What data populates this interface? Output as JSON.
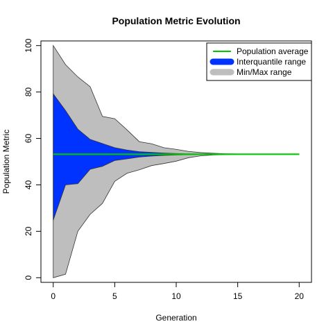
{
  "chart_data": {
    "type": "area",
    "title": "Population Metric Evolution",
    "xlabel": "Generation",
    "ylabel": "Population Metric",
    "xlim": [
      -1,
      21
    ],
    "ylim": [
      -2,
      102
    ],
    "xticks": [
      0,
      5,
      10,
      15,
      20
    ],
    "yticks": [
      0,
      20,
      40,
      60,
      80,
      100
    ],
    "grid": false,
    "legend_position": "top-right",
    "x": [
      0,
      1,
      2,
      3,
      4,
      5,
      6,
      7,
      8,
      9,
      10,
      11,
      12,
      13,
      14,
      15,
      16,
      17,
      18,
      19,
      20
    ],
    "series": [
      {
        "name": "Population average",
        "kind": "line",
        "color": "#00c800",
        "values": [
          53.2,
          53.2,
          53.2,
          53.2,
          53.2,
          53.2,
          53.2,
          53.2,
          53.2,
          53.2,
          53.2,
          53.2,
          53.2,
          53.2,
          53.2,
          53.2,
          53.2,
          53.2,
          53.2,
          53.2,
          53.2
        ]
      },
      {
        "name": "Interquantile range",
        "kind": "band",
        "color": "#0033ff",
        "lower": [
          24.8,
          40.0,
          40.5,
          46.7,
          48.0,
          50.5,
          51.2,
          52.0,
          52.4,
          52.7,
          52.9,
          53.0,
          53.1,
          53.15,
          53.2,
          53.2,
          53.2,
          53.2,
          53.2,
          53.2,
          53.2
        ],
        "upper": [
          79.2,
          72.0,
          64.0,
          59.6,
          57.8,
          56.0,
          55.0,
          54.3,
          54.0,
          53.7,
          53.5,
          53.35,
          53.3,
          53.25,
          53.2,
          53.2,
          53.2,
          53.2,
          53.2,
          53.2,
          53.2
        ]
      },
      {
        "name": "Min/Max range",
        "kind": "band",
        "color": "#bebebe",
        "lower": [
          0.0,
          1.5,
          20.0,
          27.3,
          32.0,
          41.5,
          45.0,
          46.5,
          48.3,
          49.2,
          50.2,
          51.7,
          52.5,
          52.9,
          53.05,
          53.15,
          53.2,
          53.2,
          53.2,
          53.2,
          53.2
        ],
        "upper": [
          100.0,
          91.8,
          86.5,
          82.3,
          69.5,
          68.5,
          63.7,
          58.6,
          57.7,
          56.0,
          55.3,
          54.4,
          53.9,
          53.6,
          53.4,
          53.3,
          53.25,
          53.2,
          53.2,
          53.2,
          53.2
        ]
      }
    ]
  }
}
